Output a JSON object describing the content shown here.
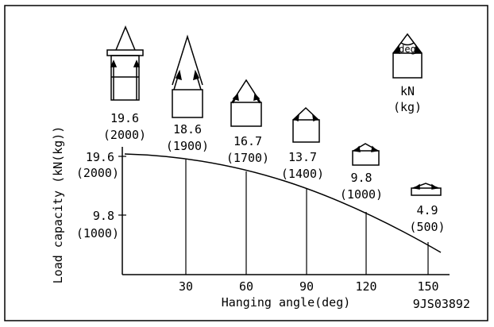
{
  "chart_data": {
    "type": "line",
    "xlabel": "Hanging angle(deg)",
    "ylabel": "Load capacity (kN(kg))",
    "x_ticks": [
      "30",
      "60",
      "90",
      "120",
      "150"
    ],
    "y_ticks": [
      {
        "kn": "19.6",
        "kg": "(2000)",
        "value": 19.6
      },
      {
        "kn": "9.8",
        "kg": "(1000)",
        "value": 9.8
      }
    ],
    "x": [
      0,
      30,
      60,
      90,
      120,
      150
    ],
    "values": [
      19.6,
      18.6,
      16.7,
      13.7,
      9.8,
      4.9
    ],
    "point_labels": [
      {
        "kn": "19.6",
        "kg": "(2000)"
      },
      {
        "kn": "18.6",
        "kg": "(1900)"
      },
      {
        "kn": "16.7",
        "kg": "(1700)"
      },
      {
        "kn": "13.7",
        "kg": "(1400)"
      },
      {
        "kn": "9.8",
        "kg": "(1000)"
      },
      {
        "kn": "4.9",
        "kg": "(500)"
      }
    ],
    "xlim": [
      0,
      160
    ],
    "ylim": [
      0,
      20
    ],
    "legend": {
      "unit_kn": "kN",
      "unit_kg": "(kg)",
      "angle_label": "deg"
    },
    "figure_code": "9JS03892"
  }
}
